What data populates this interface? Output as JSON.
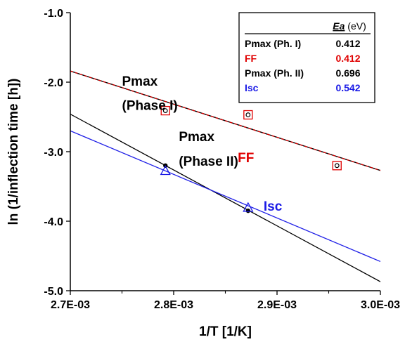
{
  "chart_data": {
    "type": "scatter",
    "xlabel": "1/T [1/K]",
    "ylabel": "ln (1/inflection time [h])",
    "xlim": [
      0.0027,
      0.003
    ],
    "ylim": [
      -5.0,
      -1.0
    ],
    "x_ticks": [
      0.0027,
      0.0028,
      0.0029,
      0.003
    ],
    "x_tick_labels": [
      "2.7E-03",
      "2.8E-03",
      "2.9E-03",
      "3.0E-03"
    ],
    "y_ticks": [
      -1.0,
      -2.0,
      -3.0,
      -4.0,
      -5.0
    ],
    "y_tick_labels": [
      "-1.0",
      "-2.0",
      "-3.0",
      "-4.0",
      "-5.0"
    ],
    "grid": false,
    "series": [
      {
        "name": "Pmax (Ph. I)",
        "marker": "circle-open",
        "color": "#000000",
        "points": [
          [
            0.002792,
            -2.41
          ],
          [
            0.002872,
            -2.47
          ],
          [
            0.002958,
            -3.2
          ]
        ],
        "fit": {
          "x": [
            0.0027,
            0.003
          ],
          "y": [
            -1.84,
            -3.27
          ],
          "style": "solid"
        }
      },
      {
        "name": "FF",
        "marker": "square-open",
        "color": "#e00000",
        "points": [
          [
            0.002792,
            -2.41
          ],
          [
            0.002872,
            -2.47
          ],
          [
            0.002958,
            -3.2
          ]
        ],
        "fit": {
          "x": [
            0.0027,
            0.003
          ],
          "y": [
            -1.84,
            -3.27
          ],
          "style": "dashed"
        }
      },
      {
        "name": "Pmax (Ph. II)",
        "marker": "circle-filled",
        "color": "#000000",
        "points": [
          [
            0.002792,
            -3.2
          ],
          [
            0.002872,
            -3.85
          ]
        ],
        "fit": {
          "x": [
            0.0027,
            0.003
          ],
          "y": [
            -2.46,
            -4.87
          ],
          "style": "solid"
        }
      },
      {
        "name": "Isc",
        "marker": "triangle-open",
        "color": "#1a1ae6",
        "points": [
          [
            0.002792,
            -3.28
          ],
          [
            0.002872,
            -3.81
          ]
        ],
        "fit": {
          "x": [
            0.0027,
            0.003
          ],
          "y": [
            -2.7,
            -4.58
          ],
          "style": "solid"
        }
      }
    ],
    "annotations": [
      {
        "text": "Pmax",
        "x": 0.00275,
        "y": -2.05,
        "color": "#000000"
      },
      {
        "text": "(Phase I)",
        "x": 0.00275,
        "y": -2.4,
        "color": "#000000"
      },
      {
        "text": "Pmax",
        "x": 0.002805,
        "y": -2.85,
        "color": "#000000"
      },
      {
        "text": "(Phase II)",
        "x": 0.002805,
        "y": -3.2,
        "color": "#000000"
      },
      {
        "text": "FF",
        "x": 0.002862,
        "y": -3.15,
        "color": "#e00000"
      },
      {
        "text": "Isc",
        "x": 0.002887,
        "y": -3.85,
        "color": "#1a1ae6"
      }
    ],
    "legend": {
      "placement": "top-right",
      "header_label": "Ea",
      "header_unit": "(eV)",
      "rows": [
        {
          "label": "Pmax (Ph. I)",
          "value": "0.412",
          "color": "#000000"
        },
        {
          "label": "FF",
          "value": "0.412",
          "color": "#e00000"
        },
        {
          "label": "Pmax (Ph. II)",
          "value": "0.696",
          "color": "#000000"
        },
        {
          "label": "Isc",
          "value": "0.542",
          "color": "#1a1ae6"
        }
      ]
    }
  }
}
